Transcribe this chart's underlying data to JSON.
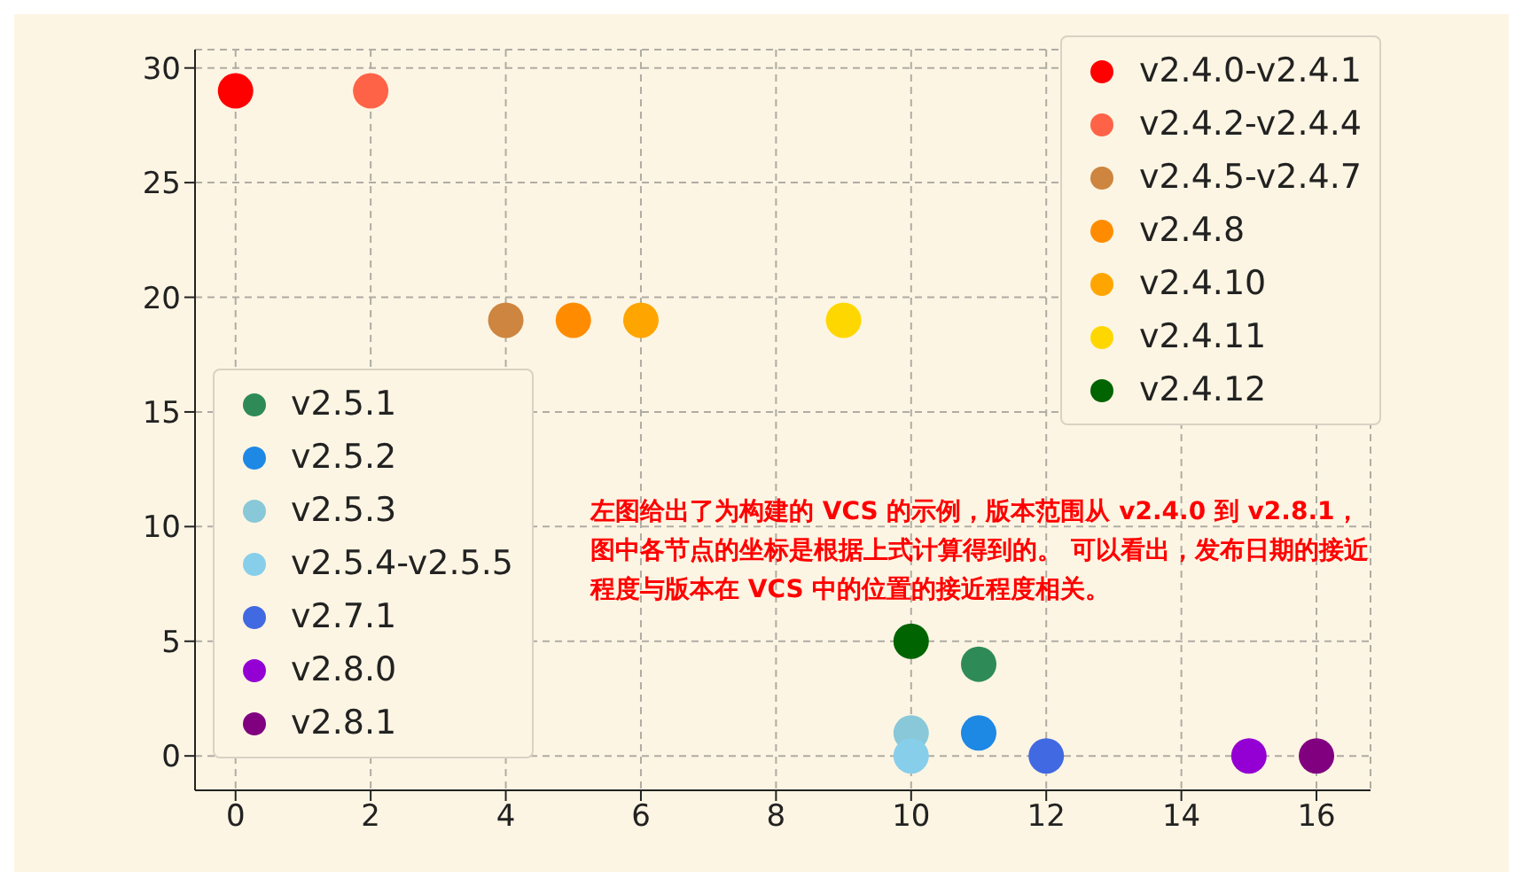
{
  "chart_data": {
    "type": "scatter",
    "xlim": [
      -0.6,
      16.8
    ],
    "ylim": [
      -1.5,
      30.8
    ],
    "xticks": [
      0,
      2,
      4,
      6,
      8,
      10,
      12,
      14,
      16
    ],
    "yticks": [
      0,
      5,
      10,
      15,
      20,
      25,
      30
    ],
    "grid": true,
    "legend": "top right",
    "marker": "circle",
    "annotations": [
      "左图给出了为构建的 VCS 的示例，版本范围从 v2.4.0 到 v2.8.1，图中各节点的坐标是根据上式计算得到的。 可以看出，发布日期的接近程度与版本在 VCS 中的位置的接近程度相关。"
    ],
    "series": [
      {
        "name": "v2.4.0-v2.4.1",
        "color": "#ff0000",
        "x": [
          0
        ],
        "values": [
          29
        ]
      },
      {
        "name": "v2.4.2-v2.4.4",
        "color": "#ff6347",
        "x": [
          2
        ],
        "values": [
          29
        ]
      },
      {
        "name": "v2.4.5-v2.4.7",
        "color": "#cd853f",
        "x": [
          4
        ],
        "values": [
          19
        ]
      },
      {
        "name": "v2.4.8",
        "color": "#ff8c00",
        "x": [
          5
        ],
        "values": [
          19
        ]
      },
      {
        "name": "v2.4.10",
        "color": "#ffa500",
        "x": [
          6
        ],
        "values": [
          19
        ]
      },
      {
        "name": "v2.4.11",
        "color": "#ffd700",
        "x": [
          9
        ],
        "values": [
          19
        ]
      },
      {
        "name": "v2.4.12",
        "color": "#006400",
        "x": [
          10
        ],
        "values": [
          5
        ]
      },
      {
        "name": "v2.5.1",
        "color": "#2e8b57",
        "x": [
          11
        ],
        "values": [
          4
        ]
      },
      {
        "name": "v2.5.2",
        "color": "#1e88e5",
        "x": [
          11
        ],
        "values": [
          1
        ]
      },
      {
        "name": "v2.5.3",
        "color": "#88c8d8",
        "x": [
          10
        ],
        "values": [
          1
        ]
      },
      {
        "name": "v2.5.4-v2.5.5",
        "color": "#87ceeb",
        "x": [
          10
        ],
        "values": [
          0
        ]
      },
      {
        "name": "v2.7.1",
        "color": "#4169e1",
        "x": [
          12
        ],
        "values": [
          0
        ]
      },
      {
        "name": "v2.8.0",
        "color": "#9400d3",
        "x": [
          15
        ],
        "values": [
          0
        ]
      },
      {
        "name": "v2.8.1",
        "color": "#800080",
        "x": [
          16
        ],
        "values": [
          0
        ]
      }
    ]
  }
}
